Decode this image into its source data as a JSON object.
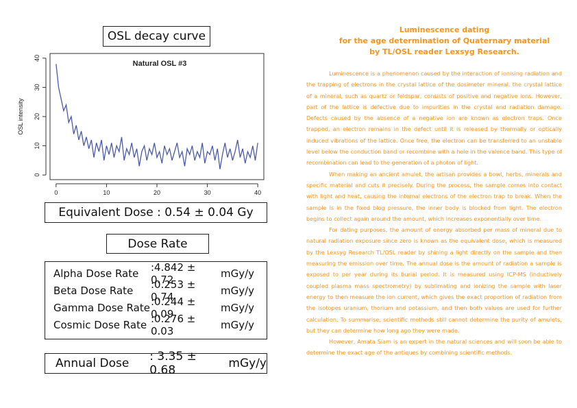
{
  "left": {
    "osl_title": "OSL decay curve",
    "equivalent_dose": {
      "label": "Equivalent Dose",
      "value": ": 0.54 ± 0.04 Gy"
    },
    "dose_rate_title": "Dose Rate",
    "dose_rates": [
      {
        "label": "Alpha Dose Rate",
        "value": ":4.842 ± 0.72",
        "unit": "mGy/y"
      },
      {
        "label": "Beta Dose Rate",
        "value": ":0.253 ± 0.74",
        "unit": "mGy/y"
      },
      {
        "label": "Gamma Dose Rate",
        "value": ":0.244 ± 0.09",
        "unit": "mGy/y"
      },
      {
        "label": "Cosmic Dose Rate",
        "value": ":0.276 ± 0.03",
        "unit": "mGy/y"
      }
    ],
    "annual_dose": {
      "label": "Annual Dose",
      "value": ": 3.35 ± 0.68",
      "unit": "mGy/y"
    }
  },
  "chart_data": {
    "type": "line",
    "title": "Natural OSL #3",
    "y_label": "OSL intensity",
    "color": "#4a5aa8",
    "xlim": [
      -1.2,
      41.2
    ],
    "ylim": [
      -1.6,
      41.6
    ],
    "xticks": [
      0,
      10,
      20,
      30,
      40
    ],
    "yticks": [
      0,
      10,
      20,
      30,
      40
    ],
    "x": [
      0,
      0.5,
      1,
      1.5,
      2,
      2.5,
      3,
      3.5,
      4,
      4.5,
      5,
      5.5,
      6,
      6.5,
      7,
      7.5,
      8,
      8.5,
      9,
      9.5,
      10,
      10.5,
      11,
      11.5,
      12,
      12.5,
      13,
      13.5,
      14,
      14.5,
      15,
      15.5,
      16,
      16.5,
      17,
      17.5,
      18,
      18.5,
      19,
      19.5,
      20,
      20.5,
      21,
      21.5,
      22,
      22.5,
      23,
      23.5,
      24,
      24.5,
      25,
      25.5,
      26,
      26.5,
      27,
      27.5,
      28,
      28.5,
      29,
      29.5,
      30,
      30.5,
      31,
      31.5,
      32,
      32.5,
      33,
      33.5,
      34,
      34.5,
      35,
      35.5,
      36,
      36.5,
      37,
      37.5,
      38,
      38.5,
      39,
      39.5,
      40
    ],
    "values": [
      38,
      30,
      26,
      22,
      24,
      18,
      20,
      14,
      17,
      12,
      15,
      10,
      13,
      9,
      12,
      6,
      11,
      8,
      12,
      5,
      10,
      7,
      11,
      6,
      10,
      8,
      13,
      5,
      9,
      7,
      11,
      6,
      9,
      3,
      8,
      10,
      5,
      9,
      7,
      11,
      6,
      8,
      4,
      10,
      7,
      9,
      5,
      8,
      11,
      6,
      8,
      3,
      9,
      7,
      10,
      5,
      8,
      6,
      11,
      4,
      8,
      7,
      10,
      5,
      9,
      2,
      7,
      11,
      6,
      9,
      5,
      8,
      12,
      6,
      9,
      4,
      8,
      6,
      10,
      5,
      11
    ]
  },
  "article": {
    "heading": [
      "Luminescence dating",
      "for the age determination of Quaternary material",
      "by TL/OSL reader Lexsyg Research."
    ],
    "paragraphs": [
      "Luminescence is a phenomenon caused by the interaction of ionising radiation and the trapping of electrons in the crystal lattice of the dosimeter mineral. the crystal lattice of a mineral, such as quartz or feldspar, consists of positive and negative ions. However, part of the lattice is defective due to impurities in the crystal and radiation damage. Defects caused by the absence of a negative ion are known as electron traps. Once trapped, an electron remains in the defect until it is released by thermally or optically induced vibrations of the lattice. Once free, the electron can be transferred to an unstable level below the conduction band or recombine with a hole in the valence band. This type of recombination can lead to the generation of a photon of light.",
      "When making an ancient amulet, the artisan provides a bowl, herbs, minerals and specific material and cuts it precisely. During the process, the sample comes into contact with light and heat, causing the internal electrons of the electron trap to break. When the sample is in the fixed blog pressure, the inner body is blocked from light. The electron begins to collect again around the amount, which increases exponentially over time.",
      "For dating purposes, the amount of energy absorbed per mass of mineral due to natural radiation exposure since zero is known as the equivalent dose, which is measured by the Lexsyg Research TL/OSL reader by shining a light directly on the sample and then measuring the emission over time. The annual dose is the amount of radiation a sample is exposed to per year during its burial period. It is measured using ICP-MS (inductively coupled plasma mass spectrometry) by sublimating and ionizing the sample with laser energy to then measure the ion current, which gives the exact proportion of radiation from the isotopes uranium, thorium and potassium, and then both values are used for further calculation. To summarise, scientific methods still cannot determine the purity of amulets, but they can determine how long ago they were made.",
      "However, Amata Siam is an expert in the natural sciences and will soon be able to determine the exact age of the antiques by combining scientific methods."
    ]
  }
}
